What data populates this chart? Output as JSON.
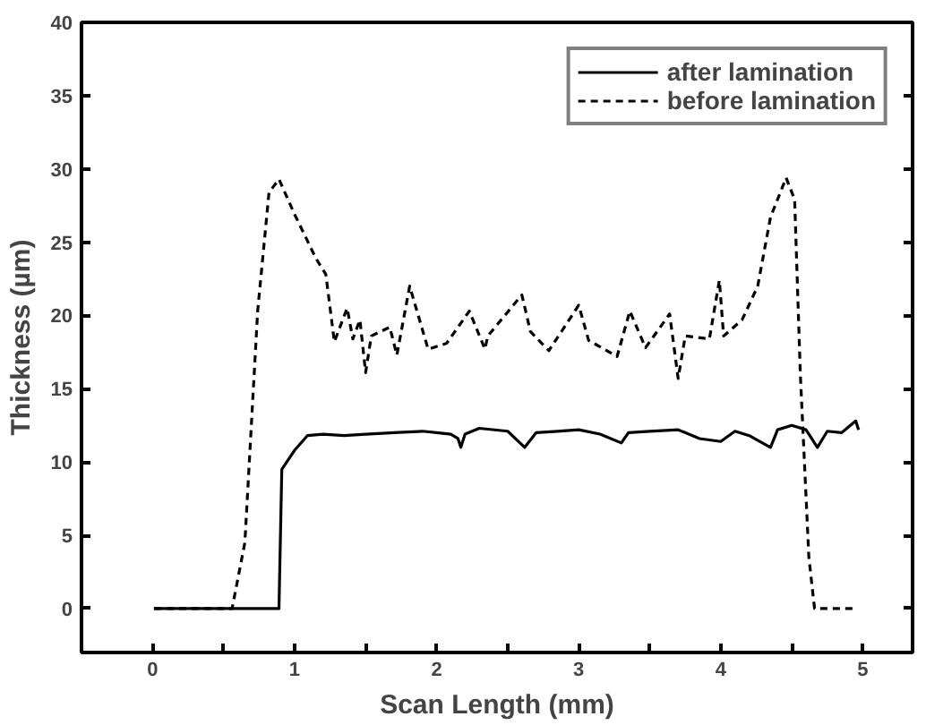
{
  "chart_data": {
    "type": "line",
    "xlabel": "Scan Length (mm)",
    "ylabel": "Thickness (µm)",
    "xlim": [
      -0.5,
      5.35
    ],
    "ylim": [
      -3,
      40
    ],
    "xticks": [
      0,
      {
        "value": 0.5,
        "label": null
      },
      1,
      {
        "value": 1.5,
        "label": null
      },
      2,
      {
        "value": 2.5,
        "label": null
      },
      3,
      {
        "value": 3.5,
        "label": null
      },
      4,
      {
        "value": 4.5,
        "label": null
      },
      5
    ],
    "yticks": [
      0,
      5,
      10,
      15,
      20,
      25,
      30,
      35,
      40
    ],
    "grid": false,
    "legend": "top right",
    "series": [
      {
        "name": "after lamination",
        "color": "#000000",
        "line_style": "solid",
        "x": [
          0.01,
          0.3,
          0.6,
          0.89,
          0.91,
          1.0,
          1.09,
          1.2,
          1.35,
          1.5,
          1.7,
          1.9,
          2.0,
          2.1,
          2.15,
          2.17,
          2.2,
          2.3,
          2.5,
          2.62,
          2.7,
          2.85,
          3.0,
          3.15,
          3.3,
          3.35,
          3.5,
          3.7,
          3.85,
          4.0,
          4.1,
          4.2,
          4.35,
          4.4,
          4.5,
          4.6,
          4.68,
          4.75,
          4.85,
          4.95,
          4.97
        ],
        "values": [
          0,
          0,
          0,
          0,
          9.5,
          10.8,
          11.8,
          11.9,
          11.8,
          11.9,
          12.0,
          12.1,
          12.0,
          11.9,
          11.6,
          11.0,
          11.9,
          12.3,
          12.1,
          11.0,
          12.0,
          12.1,
          12.2,
          11.9,
          11.3,
          12.0,
          12.1,
          12.2,
          11.6,
          11.4,
          12.1,
          11.8,
          11.0,
          12.2,
          12.5,
          12.2,
          11.0,
          12.1,
          12.0,
          12.8,
          12.2
        ]
      },
      {
        "name": "before lamination",
        "color": "#000000",
        "line_style": "dashed",
        "x": [
          0.01,
          0.56,
          0.65,
          0.74,
          0.82,
          0.89,
          1.0,
          1.15,
          1.22,
          1.28,
          1.37,
          1.41,
          1.46,
          1.5,
          1.54,
          1.67,
          1.72,
          1.81,
          1.94,
          2.07,
          2.23,
          2.34,
          2.36,
          2.6,
          2.66,
          2.79,
          3.0,
          3.07,
          3.27,
          3.36,
          3.47,
          3.64,
          3.7,
          3.75,
          3.92,
          3.99,
          4.02,
          4.15,
          4.26,
          4.35,
          4.46,
          4.52,
          4.56,
          4.62,
          4.66,
          4.95
        ],
        "values": [
          0,
          0,
          4.5,
          20.3,
          28.4,
          29.3,
          26.9,
          23.9,
          22.8,
          18.2,
          20.5,
          18.4,
          19.7,
          16.1,
          18.6,
          19.2,
          17.3,
          22,
          17.7,
          18.1,
          20.3,
          17.7,
          18.6,
          21.4,
          18.9,
          17.6,
          20.7,
          18.3,
          17.2,
          20.3,
          17.8,
          20.1,
          15.7,
          18.6,
          18.4,
          22.4,
          18.6,
          19.7,
          22.0,
          26.7,
          29.4,
          27.9,
          16,
          3.5,
          0,
          0
        ]
      }
    ]
  }
}
